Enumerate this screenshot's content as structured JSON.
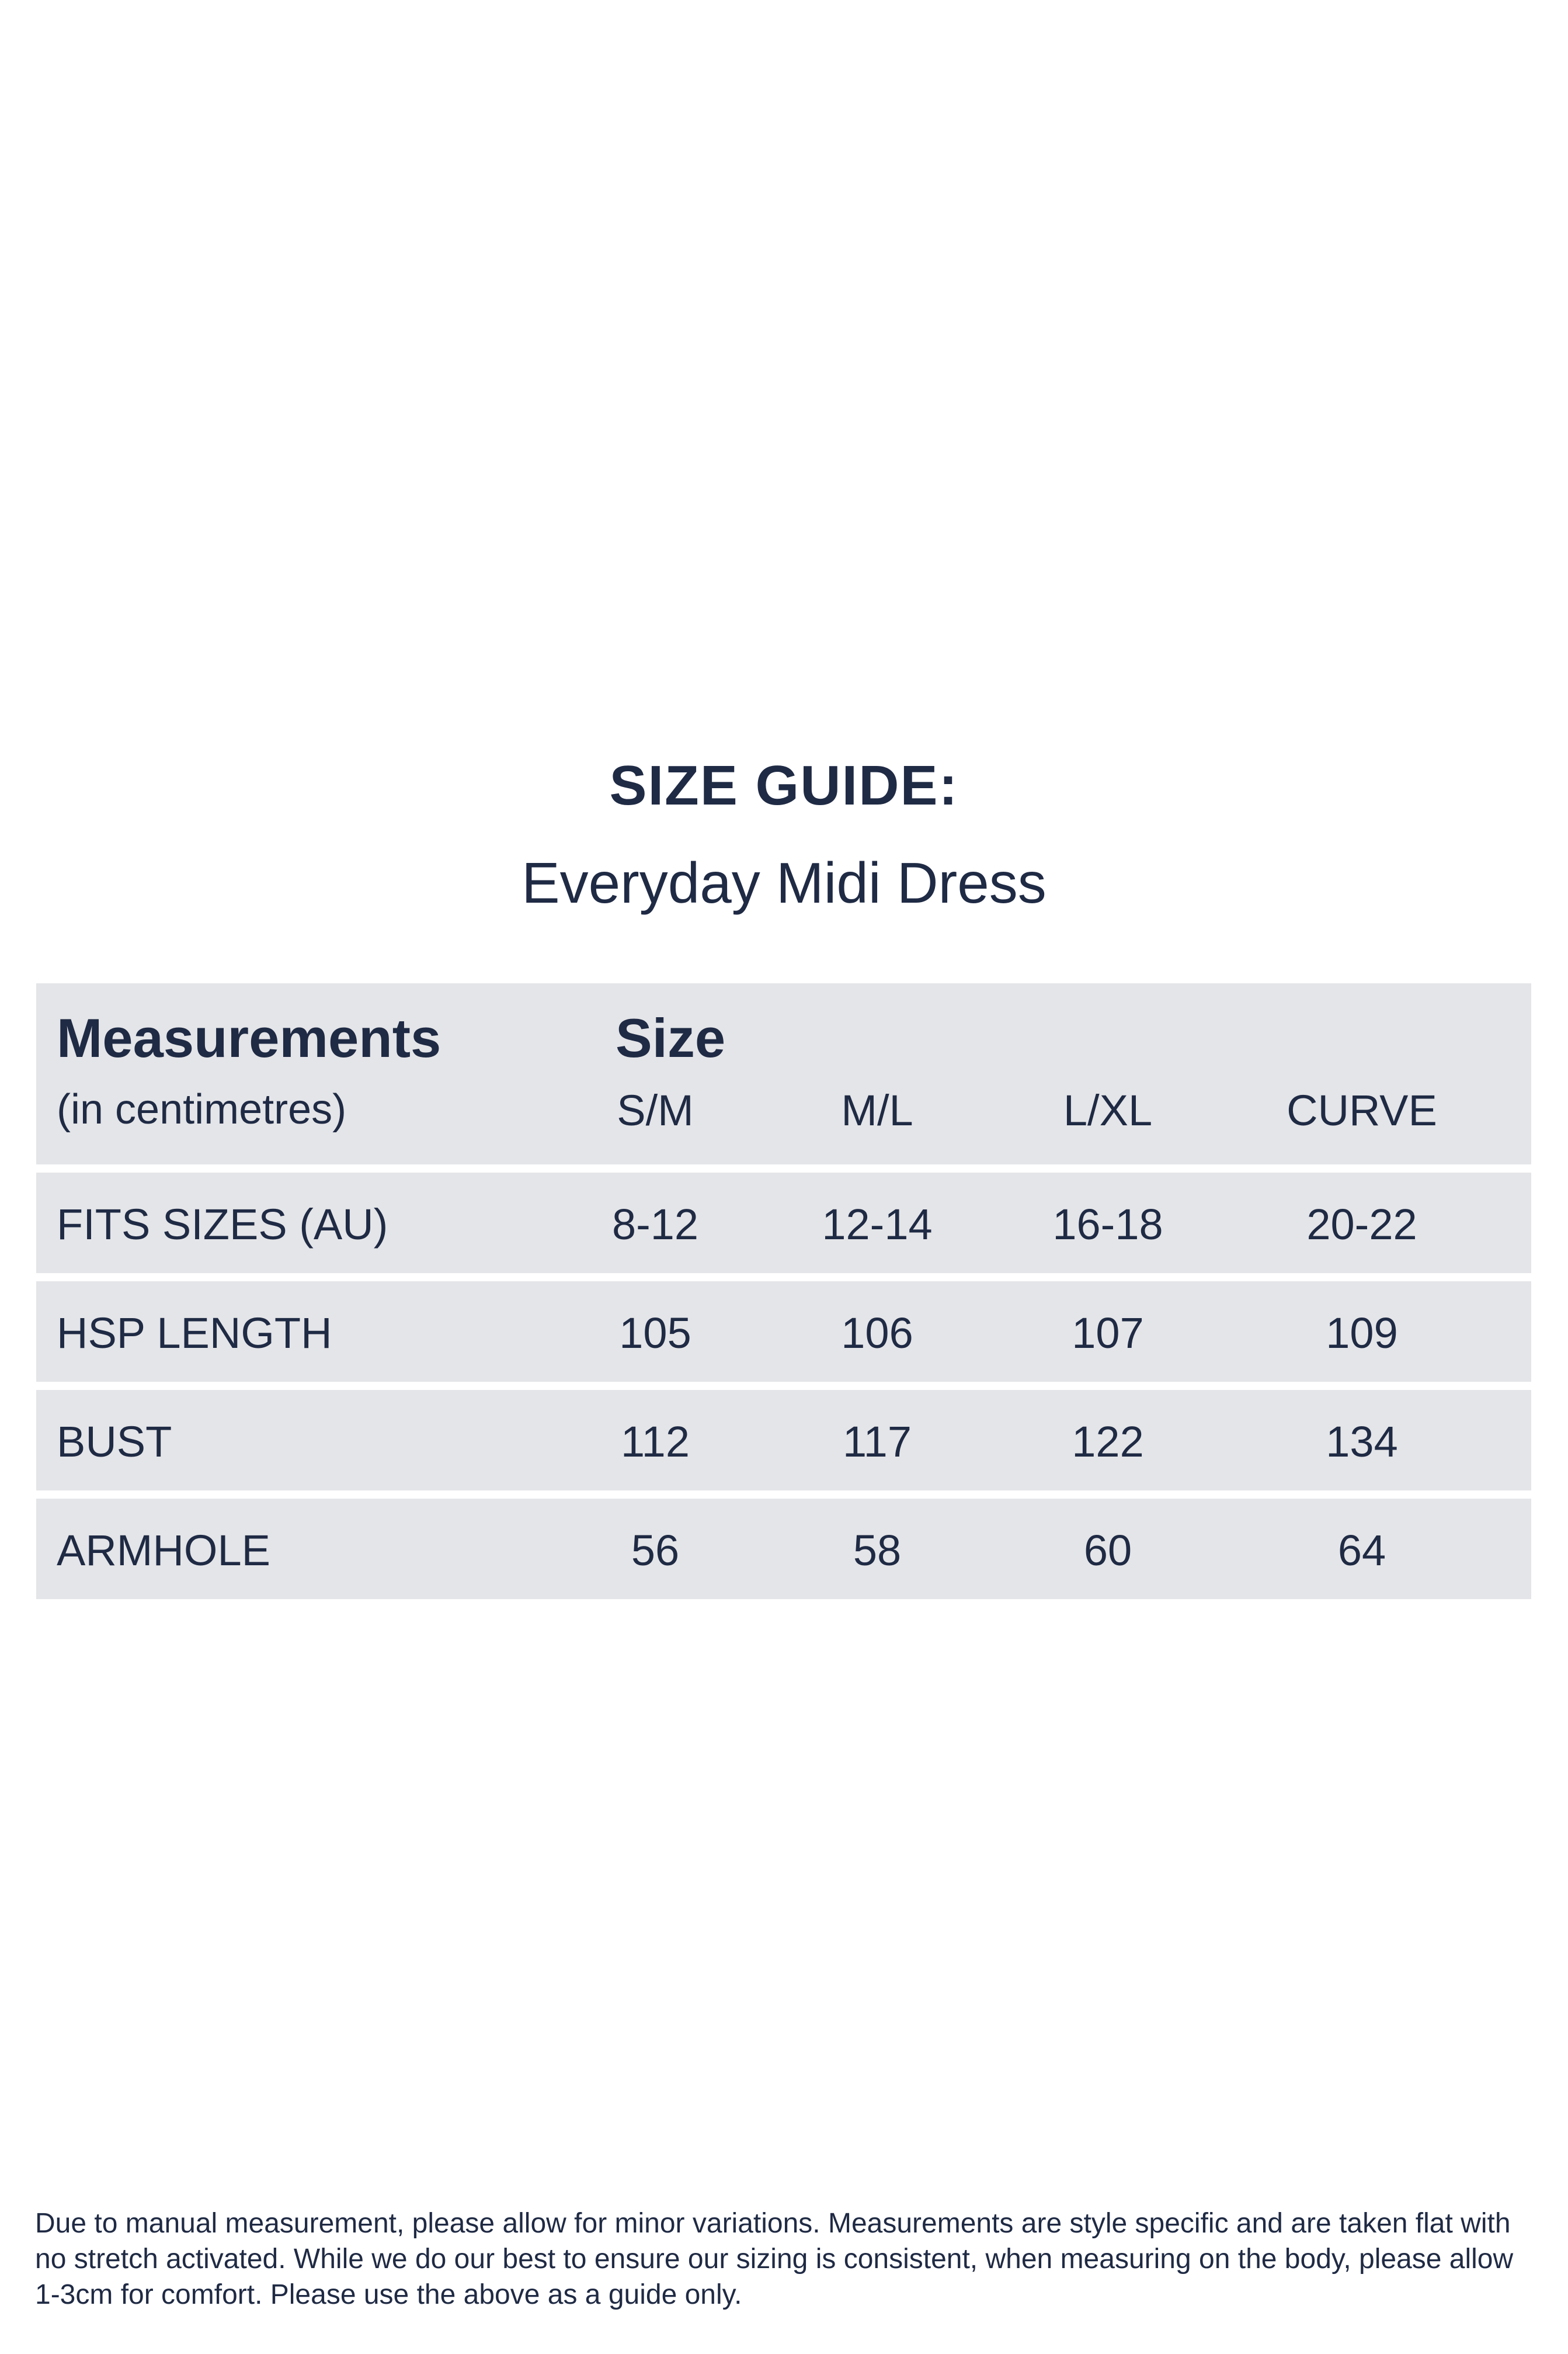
{
  "header": {
    "title": "SIZE GUIDE:",
    "subtitle": "Everyday Midi Dress"
  },
  "table": {
    "measurements_label": "Measurements",
    "unit_label": "(in centimetres)",
    "size_label": "Size",
    "columns": [
      "S/M",
      "M/L",
      "L/XL",
      "CURVE"
    ],
    "rows": [
      {
        "label": "FITS SIZES (AU)",
        "values": [
          "8-12",
          "12-14",
          "16-18",
          "20-22"
        ]
      },
      {
        "label": "HSP LENGTH",
        "values": [
          "105",
          "106",
          "107",
          "109"
        ]
      },
      {
        "label": "BUST",
        "values": [
          "112",
          "117",
          "122",
          "134"
        ]
      },
      {
        "label": "ARMHOLE",
        "values": [
          "56",
          "58",
          "60",
          "64"
        ]
      }
    ]
  },
  "footnote": {
    "line1": "Due to manual measurement, please allow for minor variations. Measurements are style specific and are taken flat with",
    "line2": "no stretch activated. While we do our best to ensure our sizing is consistent, when measuring on the body, please allow",
    "line3": "1-3cm for comfort. Please use the above as a guide only."
  },
  "colors": {
    "text": "#1f2a44",
    "row_background": "#e4e5e8",
    "page_background": "#ffffff"
  }
}
